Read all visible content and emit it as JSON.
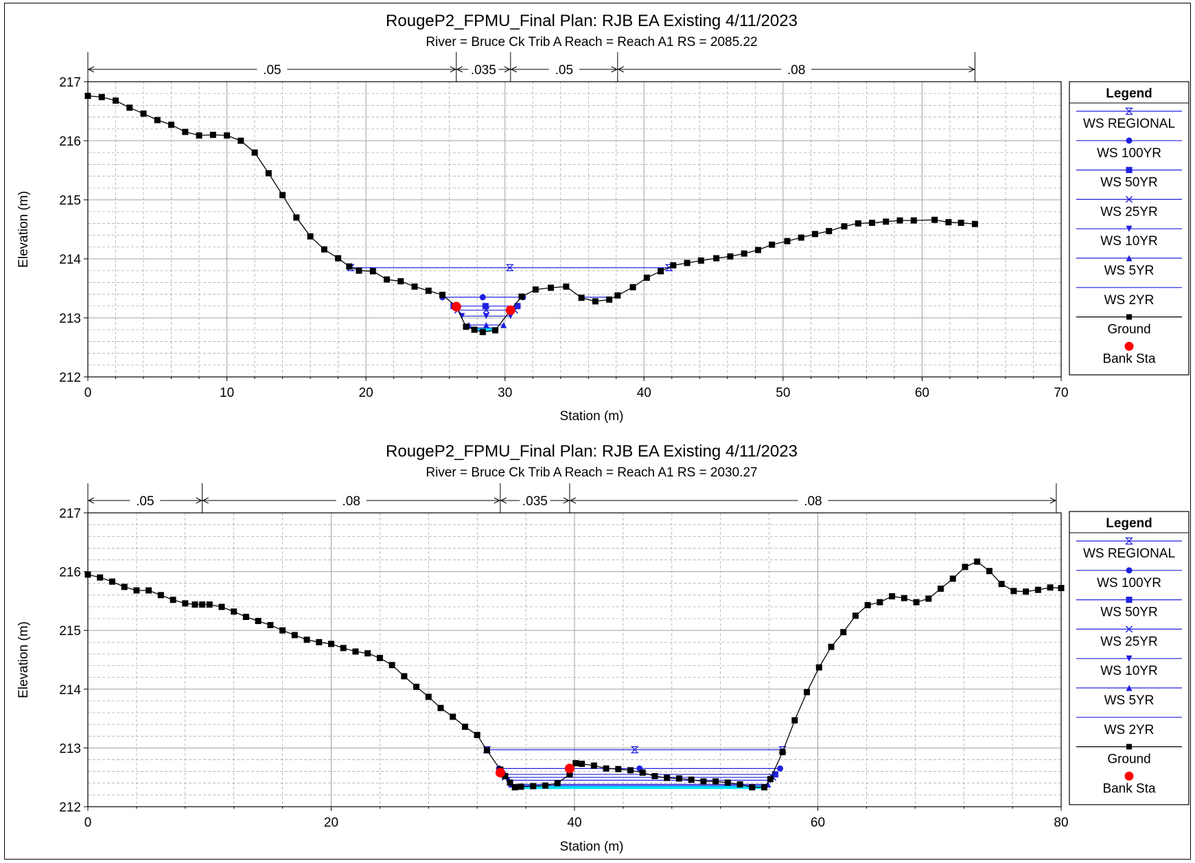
{
  "chart_data": [
    {
      "type": "line",
      "title": "RougeP2_FPMU_Final       Plan: RJB EA Existing    4/11/2023",
      "subtitle": "River = Bruce Ck Trib A   Reach = Reach A1     RS = 2085.22",
      "xlabel": "Station (m)",
      "ylabel": "Elevation (m)",
      "xlim": [
        0,
        70
      ],
      "ylim": [
        212,
        217
      ],
      "xticks": [
        0,
        10,
        20,
        30,
        40,
        50,
        60,
        70
      ],
      "yticks": [
        212,
        213,
        214,
        215,
        216,
        217
      ],
      "grid": true,
      "legend_position": "right",
      "manning": {
        "breaks": [
          0,
          26.5,
          30.4,
          38.1,
          63.8
        ],
        "labels": [
          ".05",
          ".035",
          ".05",
          ".08"
        ]
      },
      "ground": {
        "name": "Ground",
        "x": [
          0,
          1,
          2,
          3,
          4,
          5,
          6,
          7,
          8,
          9,
          10,
          11,
          12,
          13,
          14,
          15,
          16,
          17,
          18,
          18.8,
          19.5,
          20.5,
          21.5,
          22.5,
          23.5,
          24.5,
          25.5,
          26.5,
          27.2,
          27.8,
          28.4,
          29.3,
          30.4,
          31.2,
          32.2,
          33.3,
          34.4,
          35.5,
          36.5,
          37.5,
          38.1,
          39.2,
          40.2,
          41.2,
          42.1,
          43.1,
          44.1,
          45.2,
          46.2,
          47.2,
          48.2,
          49.2,
          50.3,
          51.3,
          52.3,
          53.3,
          54.4,
          55.4,
          56.4,
          57.4,
          58.4,
          59.4,
          60.9,
          61.9,
          62.8,
          63.8
        ],
        "y": [
          216.76,
          216.74,
          216.68,
          216.56,
          216.46,
          216.35,
          216.27,
          216.15,
          216.09,
          216.1,
          216.09,
          216.0,
          215.8,
          215.45,
          215.08,
          214.7,
          214.38,
          214.16,
          214.01,
          213.87,
          213.8,
          213.79,
          213.65,
          213.62,
          213.53,
          213.46,
          213.39,
          213.19,
          212.85,
          212.8,
          212.76,
          212.79,
          213.13,
          213.36,
          213.48,
          213.51,
          213.53,
          213.34,
          213.28,
          213.31,
          213.38,
          213.52,
          213.68,
          213.79,
          213.89,
          213.93,
          213.97,
          214.01,
          214.04,
          214.09,
          214.15,
          214.24,
          214.3,
          214.36,
          214.42,
          214.47,
          214.55,
          214.6,
          214.61,
          214.63,
          214.65,
          214.65,
          214.66,
          214.62,
          214.61,
          214.59
        ]
      },
      "water_surfaces": [
        {
          "name": "WS REGIONAL",
          "elevation": 213.85,
          "x_start": 18.9,
          "x_end": 41.8,
          "marker": "hourglass"
        },
        {
          "name": "WS 100YR",
          "elevation": 213.35,
          "x_start": 25.5,
          "x_end": 31.3,
          "marker": "circle",
          "x_start_2": 35.5,
          "x_end_2": 37.5
        },
        {
          "name": "WS 50YR",
          "elevation": 213.2,
          "x_start": 26.3,
          "x_end": 30.9,
          "marker": "square"
        },
        {
          "name": "WS 25YR",
          "elevation": 213.13,
          "x_start": 26.6,
          "x_end": 30.7,
          "marker": "x"
        },
        {
          "name": "WS 10YR",
          "elevation": 213.03,
          "x_start": 26.9,
          "x_end": 30.4,
          "marker": "triangle-down"
        },
        {
          "name": "WS 5YR",
          "elevation": 212.88,
          "x_start": 27.4,
          "x_end": 29.9,
          "marker": "triangle-up"
        },
        {
          "name": "WS 2YR",
          "elevation": 212.83,
          "x_start": 27.7,
          "x_end": 29.5,
          "marker": "none"
        }
      ],
      "bank_stations": [
        {
          "x": 26.5,
          "y": 213.19
        },
        {
          "x": 30.4,
          "y": 213.13
        }
      ],
      "legend": {
        "title": "Legend",
        "entries": [
          "WS REGIONAL",
          "WS 100YR",
          "WS 50YR",
          "WS 25YR",
          "WS 10YR",
          "WS 5YR",
          "WS 2YR",
          "Ground",
          "Bank Sta"
        ]
      }
    },
    {
      "type": "line",
      "title": "RougeP2_FPMU_Final       Plan: RJB EA Existing    4/11/2023",
      "subtitle": "River = Bruce Ck Trib A   Reach = Reach A1     RS = 2030.27",
      "xlabel": "Station (m)",
      "ylabel": "Elevation (m)",
      "xlim": [
        0,
        80
      ],
      "ylim": [
        212,
        217
      ],
      "xticks": [
        0,
        20,
        40,
        60,
        80
      ],
      "yticks": [
        212,
        213,
        214,
        215,
        216,
        217
      ],
      "grid": true,
      "legend_position": "right",
      "manning": {
        "breaks": [
          0,
          9.4,
          33.9,
          39.6,
          79.6
        ],
        "labels": [
          ".05",
          ".08",
          ".035",
          ".08"
        ]
      },
      "ground": {
        "name": "Ground",
        "x": [
          0,
          1,
          2,
          3,
          4,
          5,
          6,
          7,
          8,
          8.8,
          9.4,
          10,
          11,
          12,
          13,
          14,
          15,
          16,
          17,
          18,
          19,
          20,
          21,
          22,
          23,
          24,
          25,
          26,
          27,
          28,
          29,
          30,
          31,
          32,
          32.8,
          33.9,
          34.3,
          34.7,
          35.1,
          35.6,
          36.6,
          37.6,
          38.6,
          39.6,
          40.1,
          40.6,
          41.6,
          42.6,
          43.6,
          44.6,
          45.6,
          46.6,
          47.6,
          48.6,
          49.6,
          50.6,
          51.6,
          52.6,
          53.6,
          54.6,
          55.6,
          56.1,
          57.1,
          58.1,
          59.1,
          60.1,
          61.1,
          62.1,
          63.1,
          64.1,
          65.1,
          66.1,
          67.1,
          68.1,
          69.1,
          70.1,
          71.1,
          72.1,
          73.1,
          74.1,
          75.1,
          76.1,
          77.1,
          78.1,
          79.1,
          80
        ],
        "y": [
          215.95,
          215.9,
          215.83,
          215.74,
          215.68,
          215.68,
          215.6,
          215.52,
          215.46,
          215.44,
          215.44,
          215.44,
          215.4,
          215.32,
          215.23,
          215.16,
          215.09,
          215.0,
          214.92,
          214.84,
          214.8,
          214.77,
          214.7,
          214.64,
          214.61,
          214.53,
          214.41,
          214.22,
          214.04,
          213.87,
          213.68,
          213.53,
          213.36,
          213.22,
          212.96,
          212.63,
          212.52,
          212.41,
          212.33,
          212.34,
          212.35,
          212.36,
          212.4,
          212.55,
          212.74,
          212.73,
          212.7,
          212.65,
          212.64,
          212.62,
          212.58,
          212.52,
          212.49,
          212.48,
          212.46,
          212.43,
          212.43,
          212.41,
          212.38,
          212.33,
          212.33,
          212.47,
          212.93,
          213.47,
          213.95,
          214.37,
          214.72,
          214.97,
          215.25,
          215.43,
          215.48,
          215.58,
          215.55,
          215.48,
          215.54,
          215.71,
          215.88,
          216.08,
          216.17,
          216.01,
          215.79,
          215.67,
          215.66,
          215.69,
          215.73,
          215.72
        ]
      },
      "water_surfaces": [
        {
          "name": "WS REGIONAL",
          "elevation": 212.97,
          "x_start": 32.8,
          "x_end": 57.1,
          "marker": "hourglass"
        },
        {
          "name": "WS 100YR",
          "elevation": 212.65,
          "x_start": 33.8,
          "x_end": 56.9,
          "marker": "circle"
        },
        {
          "name": "WS 50YR",
          "elevation": 212.55,
          "x_start": 34.1,
          "x_end": 56.5,
          "marker": "square"
        },
        {
          "name": "WS 25YR",
          "elevation": 212.5,
          "x_start": 34.3,
          "x_end": 56.3,
          "marker": "x"
        },
        {
          "name": "WS 10YR",
          "elevation": 212.45,
          "x_start": 34.5,
          "x_end": 56.1,
          "marker": "triangle-down"
        },
        {
          "name": "WS 5YR",
          "elevation": 212.38,
          "x_start": 34.8,
          "x_end": 55.9,
          "marker": "triangle-up"
        },
        {
          "name": "WS 2YR",
          "elevation": 212.36,
          "x_start": 35.0,
          "x_end": 55.7,
          "marker": "none"
        }
      ],
      "bank_stations": [
        {
          "x": 33.9,
          "y": 212.58
        },
        {
          "x": 39.6,
          "y": 212.65
        }
      ],
      "legend": {
        "title": "Legend",
        "entries": [
          "WS REGIONAL",
          "WS 100YR",
          "WS 50YR",
          "WS 25YR",
          "WS 10YR",
          "WS 5YR",
          "WS 2YR",
          "Ground",
          "Bank Sta"
        ]
      }
    }
  ],
  "colors": {
    "ground": "#000000",
    "water_surface": "#2020e0",
    "bank_station": "#ff0000",
    "grid": "#a0a0a0"
  }
}
